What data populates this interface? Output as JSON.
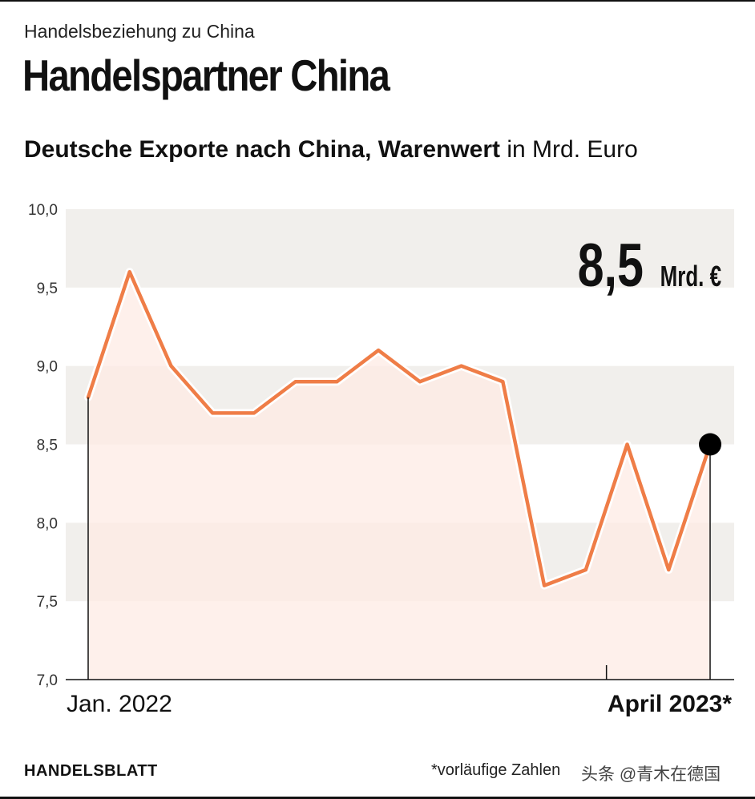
{
  "header": {
    "kicker": "Handelsbeziehung zu China",
    "title": "Handelspartner China",
    "subtitle_bold": "Deutsche Exporte nach China, Warenwert",
    "subtitle_unit": " in Mrd. Euro"
  },
  "highlight": {
    "value": "8,5",
    "unit": "Mrd. €"
  },
  "chart_data": {
    "type": "area",
    "title": "Deutsche Exporte nach China, Warenwert in Mrd. Euro",
    "ylabel": "Mrd. Euro",
    "ylim": [
      7.0,
      10.0
    ],
    "yticks": [
      7.0,
      7.5,
      8.0,
      8.5,
      9.0,
      9.5,
      10.0
    ],
    "ytick_labels": [
      "7,0",
      "7,5",
      "8,0",
      "8,5",
      "9,0",
      "9,5",
      "10,0"
    ],
    "x": [
      "2022-01",
      "2022-02",
      "2022-03",
      "2022-04",
      "2022-05",
      "2022-06",
      "2022-07",
      "2022-08",
      "2022-09",
      "2022-10",
      "2022-11",
      "2022-12",
      "2023-01",
      "2023-02",
      "2023-03",
      "2023-04"
    ],
    "values": [
      8.8,
      9.6,
      9.0,
      8.7,
      8.7,
      8.9,
      8.9,
      9.1,
      8.9,
      9.0,
      8.9,
      7.6,
      7.7,
      8.5,
      7.7,
      8.5
    ],
    "x_start_label": "Jan. 2022",
    "x_end_label": "April 2023*",
    "grid": "alternating bands",
    "line_color": "#ef7d47",
    "fill_color": "#fdebe4",
    "band_color": "#f1efec",
    "marker_color": "#000000"
  },
  "footer": {
    "brand": "HANDELSBLATT",
    "note": "*vorläufige Zahlen",
    "watermark": "头条 @青木在德国"
  }
}
